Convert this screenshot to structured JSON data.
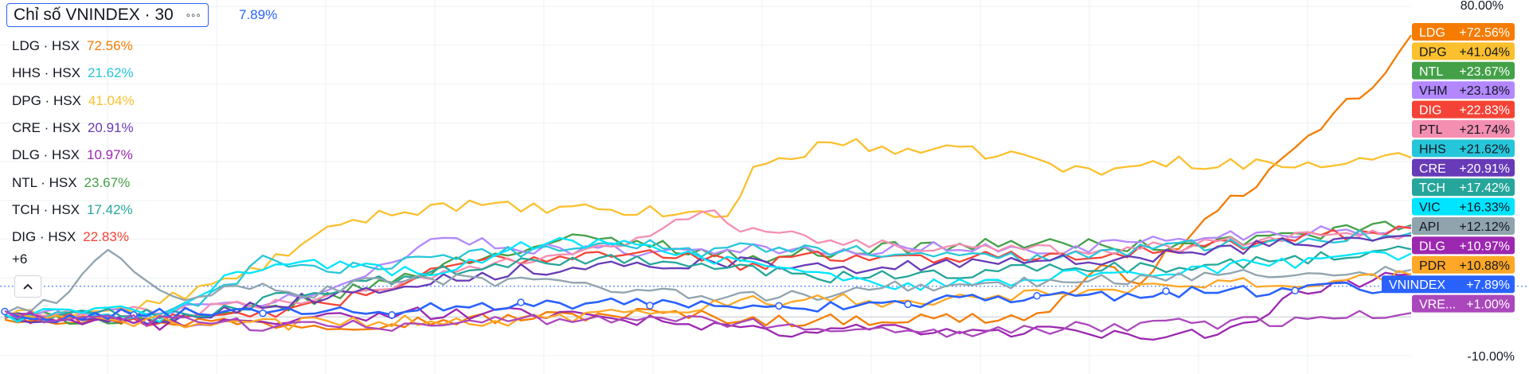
{
  "header": {
    "title": "Chỉ số VNINDEX · 30",
    "menu_icon": "more-dots-icon",
    "change": "7.89%"
  },
  "legend": [
    {
      "symbol": "LDG · HSX",
      "value": "72.56%",
      "color": "#f57c00"
    },
    {
      "symbol": "HHS · HSX",
      "value": "21.62%",
      "color": "#26c6da"
    },
    {
      "symbol": "DPG · HSX",
      "value": "41.04%",
      "color": "#fbc02d"
    },
    {
      "symbol": "CRE · HSX",
      "value": "20.91%",
      "color": "#673ab7"
    },
    {
      "symbol": "DLG · HSX",
      "value": "10.97%",
      "color": "#9c27b0"
    },
    {
      "symbol": "NTL · HSX",
      "value": "23.67%",
      "color": "#43a047"
    },
    {
      "symbol": "TCH · HSX",
      "value": "17.42%",
      "color": "#26a69a"
    },
    {
      "symbol": "DIG · HSX",
      "value": "22.83%",
      "color": "#f44336"
    }
  ],
  "more_label": "+6",
  "collapse_icon": "chevron-up-icon",
  "chart_data": {
    "type": "line",
    "ylim": [
      -10,
      80
    ],
    "yticks": [
      "80.00%",
      "-10.00%"
    ],
    "grid": true,
    "zero_line": 0,
    "baseline_dotted": 7.89,
    "points": 110,
    "series": [
      {
        "name": "LDG",
        "label": "+72.56%",
        "color": "#f57c00",
        "final": 72.56,
        "keys": [
          [
            0,
            0
          ],
          [
            25,
            -2
          ],
          [
            50,
            1
          ],
          [
            60,
            -1
          ],
          [
            80,
            0
          ],
          [
            85,
            12
          ],
          [
            88,
            10
          ],
          [
            95,
            30
          ],
          [
            100,
            42
          ],
          [
            104,
            55
          ],
          [
            107,
            62
          ],
          [
            109,
            72.56
          ]
        ]
      },
      {
        "name": "DPG",
        "label": "+41.04%",
        "color": "#fbc02d",
        "final": 41.04,
        "keys": [
          [
            0,
            0
          ],
          [
            10,
            2
          ],
          [
            18,
            10
          ],
          [
            27,
            25
          ],
          [
            34,
            29
          ],
          [
            40,
            28
          ],
          [
            50,
            27
          ],
          [
            56,
            26
          ],
          [
            58,
            38
          ],
          [
            64,
            45
          ],
          [
            70,
            43
          ],
          [
            78,
            42
          ],
          [
            84,
            37
          ],
          [
            90,
            40
          ],
          [
            100,
            39
          ],
          [
            105,
            40
          ],
          [
            109,
            41.04
          ]
        ]
      },
      {
        "name": "NTL",
        "label": "+23.67%",
        "color": "#43a047",
        "final": 23.67,
        "keys": [
          [
            0,
            0
          ],
          [
            15,
            -1
          ],
          [
            25,
            5
          ],
          [
            36,
            15
          ],
          [
            44,
            20
          ],
          [
            50,
            19
          ],
          [
            58,
            15
          ],
          [
            64,
            17
          ],
          [
            70,
            18
          ],
          [
            80,
            19
          ],
          [
            90,
            18
          ],
          [
            100,
            21
          ],
          [
            109,
            23.67
          ]
        ]
      },
      {
        "name": "VHM",
        "label": "+23.18%",
        "color": "#b388ff",
        "final": 23.18,
        "keys": [
          [
            0,
            0
          ],
          [
            15,
            2
          ],
          [
            25,
            6
          ],
          [
            33,
            20
          ],
          [
            40,
            18
          ],
          [
            50,
            17
          ],
          [
            58,
            18
          ],
          [
            64,
            16
          ],
          [
            70,
            18
          ],
          [
            80,
            17
          ],
          [
            90,
            20
          ],
          [
            100,
            22
          ],
          [
            109,
            23.18
          ]
        ]
      },
      {
        "name": "DIG",
        "label": "+22.83%",
        "color": "#f44336",
        "final": 22.83,
        "keys": [
          [
            0,
            0
          ],
          [
            15,
            -1
          ],
          [
            25,
            3
          ],
          [
            36,
            14
          ],
          [
            44,
            16
          ],
          [
            50,
            17
          ],
          [
            58,
            13
          ],
          [
            64,
            16
          ],
          [
            70,
            15
          ],
          [
            80,
            16
          ],
          [
            90,
            17
          ],
          [
            100,
            20
          ],
          [
            109,
            22.83
          ]
        ]
      },
      {
        "name": "PTL",
        "label": "+21.74%",
        "color": "#f48fb1",
        "final": 21.74,
        "keys": [
          [
            0,
            0
          ],
          [
            10,
            1
          ],
          [
            20,
            3
          ],
          [
            30,
            8
          ],
          [
            40,
            15
          ],
          [
            50,
            20
          ],
          [
            54,
            28
          ],
          [
            58,
            22
          ],
          [
            62,
            20
          ],
          [
            70,
            18
          ],
          [
            80,
            17
          ],
          [
            90,
            18
          ],
          [
            100,
            21
          ],
          [
            109,
            21.74
          ]
        ]
      },
      {
        "name": "HHS",
        "label": "+21.62%",
        "color": "#26c6da",
        "final": 21.62,
        "keys": [
          [
            0,
            0
          ],
          [
            10,
            0
          ],
          [
            16,
            5
          ],
          [
            20,
            15
          ],
          [
            25,
            12
          ],
          [
            32,
            14
          ],
          [
            40,
            17
          ],
          [
            48,
            19
          ],
          [
            54,
            17
          ],
          [
            60,
            18
          ],
          [
            70,
            16
          ],
          [
            80,
            15
          ],
          [
            90,
            18
          ],
          [
            100,
            20
          ],
          [
            109,
            21.62
          ]
        ]
      },
      {
        "name": "CRE",
        "label": "+20.91%",
        "color": "#673ab7",
        "final": 20.91,
        "keys": [
          [
            0,
            0
          ],
          [
            10,
            -1
          ],
          [
            20,
            3
          ],
          [
            30,
            8
          ],
          [
            40,
            12
          ],
          [
            50,
            14
          ],
          [
            58,
            14
          ],
          [
            64,
            12
          ],
          [
            70,
            13
          ],
          [
            80,
            14
          ],
          [
            90,
            16
          ],
          [
            100,
            19
          ],
          [
            109,
            20.91
          ]
        ]
      },
      {
        "name": "TCH",
        "label": "+17.42%",
        "color": "#26a69a",
        "final": 17.42,
        "keys": [
          [
            0,
            0
          ],
          [
            15,
            1
          ],
          [
            25,
            7
          ],
          [
            35,
            12
          ],
          [
            44,
            15
          ],
          [
            50,
            14
          ],
          [
            58,
            12
          ],
          [
            64,
            10
          ],
          [
            70,
            11
          ],
          [
            80,
            12
          ],
          [
            90,
            13
          ],
          [
            100,
            15
          ],
          [
            109,
            17.42
          ]
        ]
      },
      {
        "name": "VIC",
        "label": "+16.33%",
        "color": "#00e5ff",
        "final": 16.33,
        "keys": [
          [
            0,
            0
          ],
          [
            8,
            2
          ],
          [
            12,
            0
          ],
          [
            18,
            12
          ],
          [
            25,
            14
          ],
          [
            32,
            11
          ],
          [
            40,
            18
          ],
          [
            48,
            20
          ],
          [
            54,
            15
          ],
          [
            60,
            12
          ],
          [
            66,
            10
          ],
          [
            70,
            8
          ],
          [
            80,
            10
          ],
          [
            90,
            12
          ],
          [
            100,
            14
          ],
          [
            109,
            16.33
          ]
        ]
      },
      {
        "name": "API",
        "label": "+12.12%",
        "color": "#90a4ae",
        "final": 12.12,
        "keys": [
          [
            0,
            0
          ],
          [
            5,
            6
          ],
          [
            8,
            18
          ],
          [
            11,
            10
          ],
          [
            14,
            5
          ],
          [
            18,
            8
          ],
          [
            24,
            6
          ],
          [
            30,
            10
          ],
          [
            40,
            9
          ],
          [
            50,
            6
          ],
          [
            60,
            5
          ],
          [
            70,
            8
          ],
          [
            80,
            9
          ],
          [
            90,
            10
          ],
          [
            100,
            11
          ],
          [
            109,
            12.12
          ]
        ]
      },
      {
        "name": "DLG",
        "label": "+10.97%",
        "color": "#9c27b0",
        "final": 10.97,
        "keys": [
          [
            0,
            0
          ],
          [
            10,
            -2
          ],
          [
            20,
            -1
          ],
          [
            30,
            1
          ],
          [
            40,
            1
          ],
          [
            44,
            0
          ],
          [
            50,
            -1
          ],
          [
            55,
            -3
          ],
          [
            60,
            -4
          ],
          [
            70,
            -3
          ],
          [
            80,
            -4
          ],
          [
            90,
            -5
          ],
          [
            96,
            -3
          ],
          [
            100,
            6
          ],
          [
            105,
            9
          ],
          [
            109,
            10.97
          ]
        ]
      },
      {
        "name": "PDR",
        "label": "+10.88%",
        "color": "#ffa726",
        "final": 10.88,
        "keys": [
          [
            0,
            0
          ],
          [
            10,
            -1
          ],
          [
            20,
            -2
          ],
          [
            30,
            -1
          ],
          [
            40,
            -1
          ],
          [
            50,
            2
          ],
          [
            58,
            4
          ],
          [
            64,
            5
          ],
          [
            70,
            3
          ],
          [
            80,
            6
          ],
          [
            90,
            8
          ],
          [
            100,
            9
          ],
          [
            109,
            10.88
          ]
        ]
      },
      {
        "name": "VNINDEX",
        "label": "+7.89%",
        "color": "#2962ff",
        "final": 7.89,
        "keys": [
          [
            0,
            0
          ],
          [
            10,
            0.5
          ],
          [
            20,
            1
          ],
          [
            30,
            2
          ],
          [
            40,
            3
          ],
          [
            50,
            3.5
          ],
          [
            58,
            1.5
          ],
          [
            64,
            3
          ],
          [
            70,
            4
          ],
          [
            80,
            5
          ],
          [
            90,
            6
          ],
          [
            100,
            7
          ],
          [
            109,
            7.89
          ]
        ]
      },
      {
        "name": "VRE...",
        "label": "+1.00%",
        "color": "#ab47bc",
        "final": 1.0,
        "keys": [
          [
            0,
            0
          ],
          [
            10,
            -1
          ],
          [
            20,
            -2
          ],
          [
            30,
            -2
          ],
          [
            40,
            -1
          ],
          [
            50,
            0
          ],
          [
            58,
            -2
          ],
          [
            64,
            -3
          ],
          [
            70,
            -4
          ],
          [
            80,
            -3
          ],
          [
            90,
            -2
          ],
          [
            100,
            -1
          ],
          [
            105,
            0
          ],
          [
            109,
            1.0
          ]
        ]
      }
    ]
  }
}
